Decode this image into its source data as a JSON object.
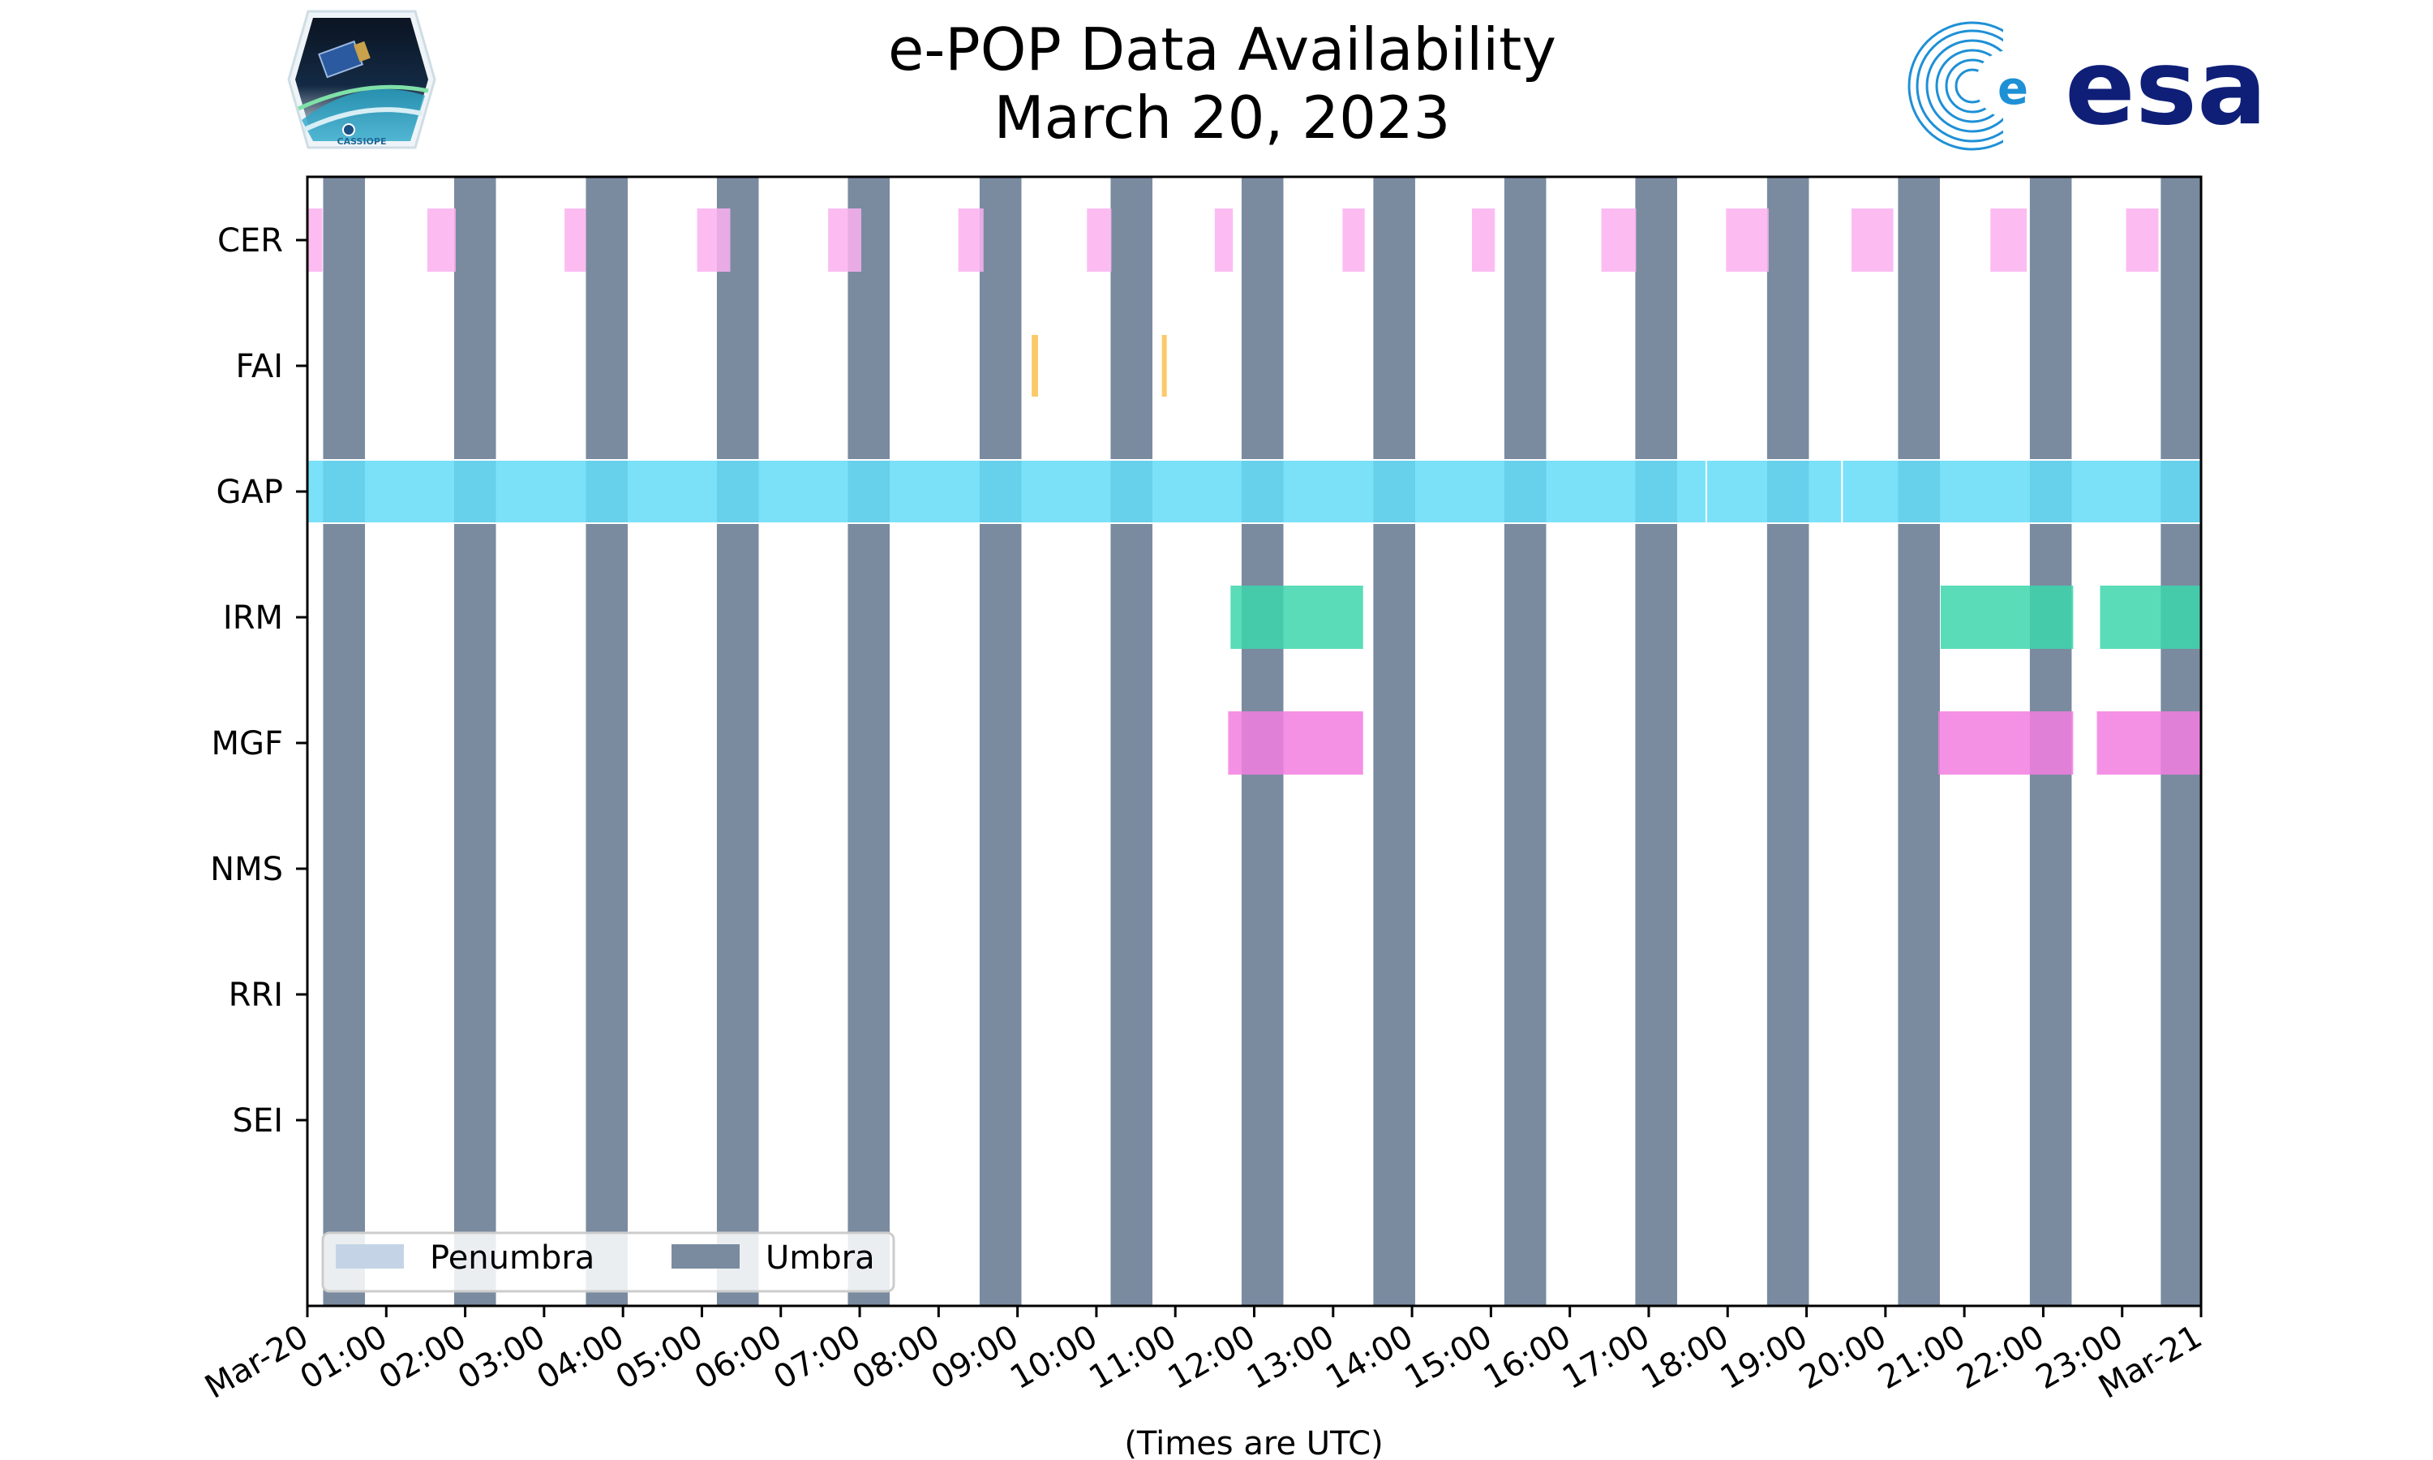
{
  "chart_data": {
    "type": "timeline",
    "title": "e-POP Data Availability",
    "subtitle": "March 20, 2023",
    "xlabel": "(Times are UTC)",
    "x_unit": "hours since Mar-20 00:00 UTC",
    "xlim": [
      0,
      24
    ],
    "x_ticks": [
      {
        "value": 0,
        "label": "Mar-20"
      },
      {
        "value": 1,
        "label": "01:00"
      },
      {
        "value": 2,
        "label": "02:00"
      },
      {
        "value": 3,
        "label": "03:00"
      },
      {
        "value": 4,
        "label": "04:00"
      },
      {
        "value": 5,
        "label": "05:00"
      },
      {
        "value": 6,
        "label": "06:00"
      },
      {
        "value": 7,
        "label": "07:00"
      },
      {
        "value": 8,
        "label": "08:00"
      },
      {
        "value": 9,
        "label": "09:00"
      },
      {
        "value": 10,
        "label": "10:00"
      },
      {
        "value": 11,
        "label": "11:00"
      },
      {
        "value": 12,
        "label": "12:00"
      },
      {
        "value": 13,
        "label": "13:00"
      },
      {
        "value": 14,
        "label": "14:00"
      },
      {
        "value": 15,
        "label": "15:00"
      },
      {
        "value": 16,
        "label": "16:00"
      },
      {
        "value": 17,
        "label": "17:00"
      },
      {
        "value": 18,
        "label": "18:00"
      },
      {
        "value": 19,
        "label": "19:00"
      },
      {
        "value": 20,
        "label": "20:00"
      },
      {
        "value": 21,
        "label": "21:00"
      },
      {
        "value": 22,
        "label": "22:00"
      },
      {
        "value": 23,
        "label": "23:00"
      },
      {
        "value": 24,
        "label": "Mar-21"
      }
    ],
    "instruments": [
      "CER",
      "FAI",
      "GAP",
      "IRM",
      "MGF",
      "NMS",
      "RRI",
      "SEI"
    ],
    "umbra": [
      [
        0.2,
        0.73
      ],
      [
        1.86,
        2.39
      ],
      [
        3.53,
        4.06
      ],
      [
        5.19,
        5.72
      ],
      [
        6.85,
        7.38
      ],
      [
        8.52,
        9.05
      ],
      [
        10.18,
        10.71
      ],
      [
        11.84,
        12.37
      ],
      [
        13.51,
        14.04
      ],
      [
        15.17,
        15.7
      ],
      [
        16.83,
        17.36
      ],
      [
        18.5,
        19.03
      ],
      [
        20.16,
        20.69
      ],
      [
        21.83,
        22.36
      ],
      [
        23.49,
        24.0
      ]
    ],
    "penumbra": [],
    "series": [
      {
        "name": "CER",
        "color": "#fbb0f0",
        "intervals": [
          [
            0.0,
            0.19
          ],
          [
            1.52,
            1.88
          ],
          [
            3.26,
            3.53
          ],
          [
            4.94,
            5.36
          ],
          [
            6.6,
            7.02
          ],
          [
            8.25,
            8.57
          ],
          [
            9.88,
            10.19
          ],
          [
            11.5,
            11.73
          ],
          [
            13.12,
            13.4
          ],
          [
            14.76,
            15.05
          ],
          [
            16.4,
            16.84
          ],
          [
            17.98,
            18.52
          ],
          [
            19.57,
            20.1
          ],
          [
            21.33,
            21.79
          ],
          [
            23.05,
            23.46
          ]
        ]
      },
      {
        "name": "FAI",
        "color": "#fcc96a",
        "intervals": [
          [
            9.18,
            9.26
          ],
          [
            10.83,
            10.88
          ]
        ]
      },
      {
        "name": "GAP",
        "color": "#64dcf8",
        "intervals": [
          [
            0.0,
            17.73
          ],
          [
            17.73,
            19.45
          ],
          [
            19.45,
            24.0
          ]
        ]
      },
      {
        "name": "IRM",
        "color": "#3dd6ac",
        "intervals": [
          [
            11.7,
            13.38
          ],
          [
            20.7,
            22.38
          ],
          [
            22.72,
            24.0
          ]
        ]
      },
      {
        "name": "MGF",
        "color": "#f27ee0",
        "intervals": [
          [
            11.67,
            13.38
          ],
          [
            20.67,
            22.38
          ],
          [
            22.68,
            24.0
          ]
        ]
      },
      {
        "name": "NMS",
        "color": "#000000",
        "intervals": []
      },
      {
        "name": "RRI",
        "color": "#000000",
        "intervals": []
      },
      {
        "name": "SEI",
        "color": "#000000",
        "intervals": []
      }
    ],
    "colors": {
      "umbra": "#7a8ba0",
      "penumbra": "#c4d4e6"
    },
    "legend": {
      "position": "bottom-left",
      "entries": [
        {
          "label": "Penumbra",
          "key": "penumbra"
        },
        {
          "label": "Umbra",
          "key": "umbra"
        }
      ]
    },
    "logos": {
      "left": "CASSIOPE",
      "right": "esa"
    }
  }
}
